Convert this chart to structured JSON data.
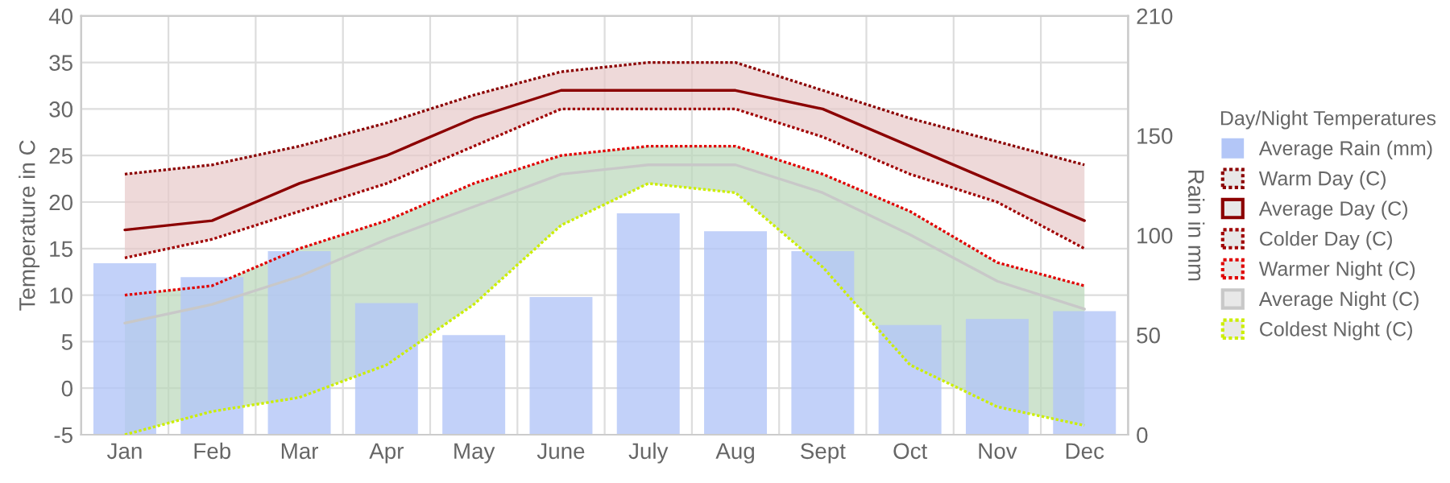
{
  "chart_data": {
    "type": "bar",
    "categories": [
      "Jan",
      "Feb",
      "Mar",
      "Apr",
      "May",
      "June",
      "July",
      "Aug",
      "Sept",
      "Oct",
      "Nov",
      "Dec"
    ],
    "ylabel": "Temperature in C",
    "y2label": "Rain in mm",
    "legend_title": "Day/Night Temperatures",
    "ylim": [
      -5,
      40
    ],
    "yticks": [
      -5,
      0,
      5,
      10,
      15,
      20,
      25,
      30,
      35,
      40
    ],
    "y2lim": [
      0,
      210
    ],
    "y2ticks": [
      0,
      50,
      100,
      150,
      210
    ],
    "grid": true,
    "legend": "right",
    "series": [
      {
        "name": "Average Rain (mm)",
        "axis": "y2",
        "color": "#b3c6f7",
        "values": [
          86,
          79,
          92,
          66,
          50,
          69,
          111,
          102,
          92,
          55,
          58,
          62
        ]
      },
      {
        "name": "Warm Day (C)",
        "type": "line",
        "line_style": "dotted",
        "color": "#8b0000",
        "values": [
          23,
          24,
          26,
          28.5,
          31.5,
          34,
          35,
          35,
          32,
          29,
          26.5,
          24
        ]
      },
      {
        "name": "Average Day (C)",
        "type": "line",
        "line_style": "solid",
        "color": "#8b0000",
        "values": [
          17,
          18,
          22,
          25,
          29,
          32,
          32,
          32,
          30,
          26,
          22,
          18
        ],
        "lower": [
          14,
          16,
          19,
          22,
          26,
          30,
          30,
          30,
          27,
          23,
          20,
          15
        ],
        "upper": [
          23,
          24,
          26,
          28.5,
          31.5,
          34,
          35,
          35,
          32,
          29,
          26.5,
          24
        ]
      },
      {
        "name": "Colder Day (C)",
        "type": "line",
        "line_style": "dotted",
        "color": "#a00000",
        "values": [
          14,
          16,
          19,
          22,
          26,
          30,
          30,
          30,
          27,
          23,
          20,
          15
        ]
      },
      {
        "name": "Warmer Night (C)",
        "type": "line",
        "line_style": "dotted",
        "color": "#e00000",
        "values": [
          10,
          11,
          15,
          18,
          22,
          25,
          26,
          26,
          23,
          19,
          13.5,
          11
        ]
      },
      {
        "name": "Average Night (C)",
        "type": "line",
        "line_style": "solid",
        "color": "#c8c8c8",
        "values": [
          7,
          9,
          12,
          16,
          19.5,
          23,
          24,
          24,
          21,
          16.5,
          11.5,
          8.5
        ],
        "lower": [
          -5,
          -2.5,
          -1,
          2.5,
          9,
          17.5,
          22,
          21,
          13,
          2.5,
          -2,
          -4
        ],
        "upper": [
          10,
          11,
          15,
          18,
          22,
          25,
          26,
          26,
          23,
          19,
          13.5,
          11
        ]
      },
      {
        "name": "Coldest Night (C)",
        "type": "line",
        "line_style": "dotted",
        "color": "#ccee00",
        "values": [
          -5,
          -2.5,
          -1,
          2.5,
          9,
          17.5,
          22,
          21,
          13,
          2.5,
          -2,
          -4
        ]
      }
    ]
  }
}
